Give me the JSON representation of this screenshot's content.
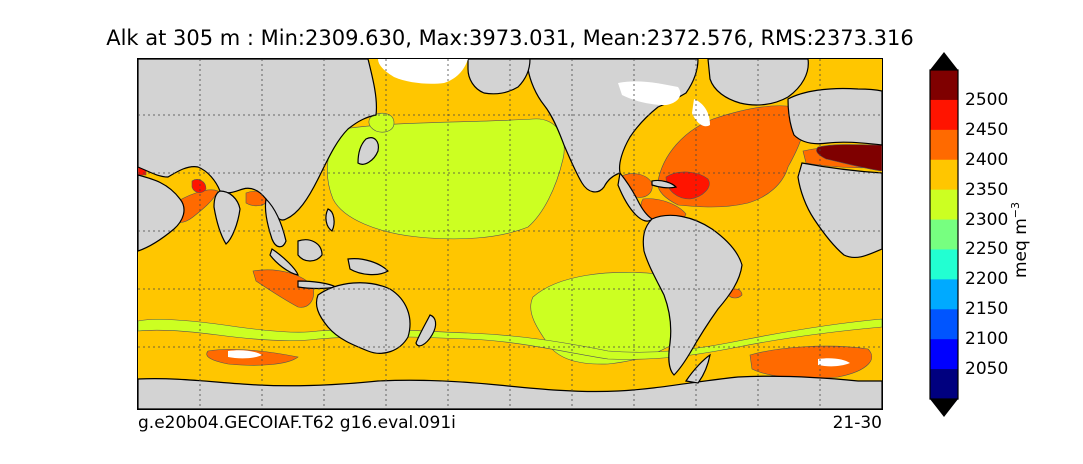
{
  "title": "Alk at 305 m : Min:2309.630, Max:3973.031, Mean:2372.576, RMS:2373.316",
  "footer": {
    "left": "g.e20b04.GECOIAF.T62 g16.eval.091i",
    "right": "21-30"
  },
  "colorbar": {
    "unit_label": "meq m",
    "unit_exponent": "−3",
    "ticks": [
      "2050",
      "2100",
      "2150",
      "2200",
      "2250",
      "2300",
      "2350",
      "2400",
      "2450",
      "2500"
    ],
    "colors": [
      "#00007f",
      "#0000ff",
      "#0055ff",
      "#00aaff",
      "#22ffd2",
      "#77ff80",
      "#ccff22",
      "#ffc600",
      "#ff6a00",
      "#ff1400",
      "#7f0000"
    ],
    "extend": "both"
  },
  "map": {
    "projection": "cylindrical",
    "land_color": "#d3d3d3",
    "ice_color": "#ffffff",
    "gridlines": "dotted",
    "level_colors": {
      "2300-2350": "#ccff22",
      "2350-2400": "#ffc600",
      "2400-2450": "#ff6a00",
      "2450-2500": "#ff1400",
      "2500+": "#7f0000"
    }
  }
}
